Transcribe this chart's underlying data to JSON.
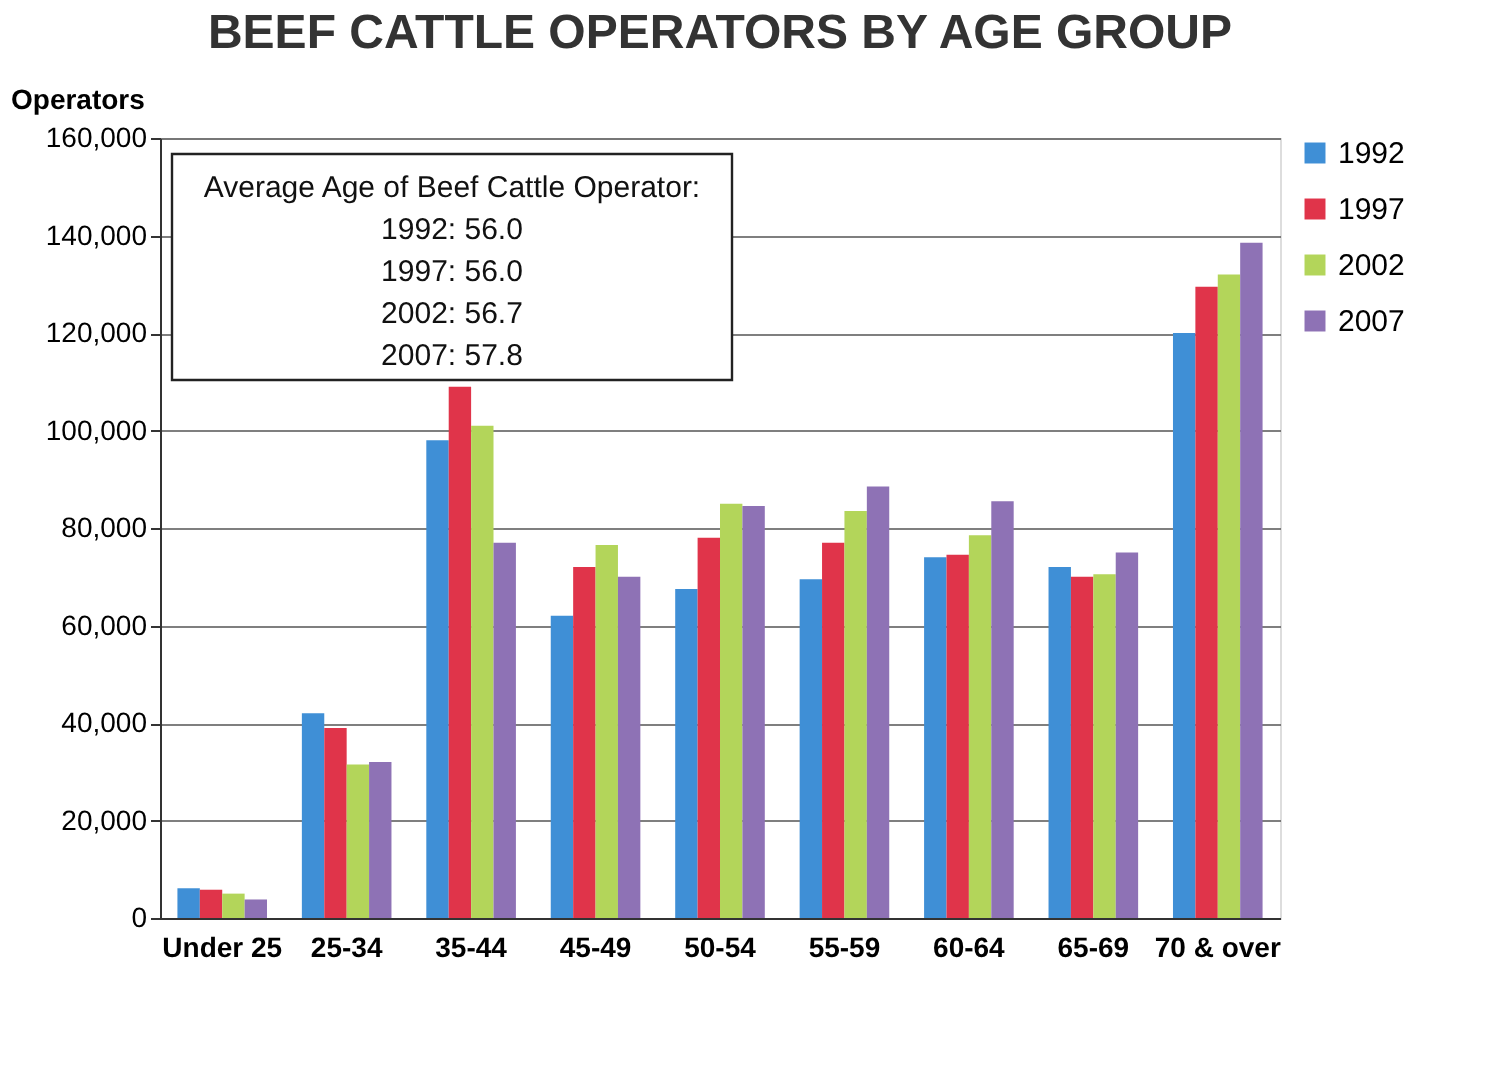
{
  "chart_data": {
    "type": "bar",
    "title": "BEEF CATTLE OPERATORS BY AGE GROUP",
    "ylabel": "Operators",
    "categories": [
      "Under 25",
      "25-34",
      "35-44",
      "45-49",
      "50-54",
      "55-59",
      "60-64",
      "65-69",
      "70 & over"
    ],
    "series": [
      {
        "name": "1992",
        "color": "#3f8fd6",
        "values": [
          6100,
          42000,
          98000,
          62000,
          67500,
          69500,
          74000,
          72000,
          120000
        ]
      },
      {
        "name": "1997",
        "color": "#e0344a",
        "values": [
          5800,
          39000,
          109000,
          72000,
          78000,
          77000,
          74500,
          70000,
          129500
        ]
      },
      {
        "name": "2002",
        "color": "#b3d55a",
        "values": [
          5000,
          31500,
          101000,
          76500,
          85000,
          83500,
          78500,
          70500,
          132000
        ]
      },
      {
        "name": "2007",
        "color": "#8e72b5",
        "values": [
          3800,
          32000,
          77000,
          70000,
          84500,
          88500,
          85500,
          75000,
          138500
        ]
      }
    ],
    "ylim": [
      0,
      160000
    ],
    "yticks": [
      0,
      {
        "value": 20000,
        "label": "20,000"
      },
      {
        "value": 40000,
        "label": "40,000"
      },
      {
        "value": 60000,
        "label": "60,000"
      },
      {
        "value": 80000,
        "label": "80,000"
      },
      {
        "value": 100000,
        "label": "100,000"
      },
      {
        "value": 120000,
        "label": "120,000"
      },
      {
        "value": 140000,
        "label": "140,000"
      },
      {
        "value": 160000,
        "label": "160,000"
      }
    ],
    "grid": "y",
    "legend": "right",
    "annotations": [
      "Average Age of Beef Cattle Operator:",
      "1992:  56.0",
      "1997:  56.0",
      "2002:  56.7",
      "2007:  57.8"
    ]
  }
}
